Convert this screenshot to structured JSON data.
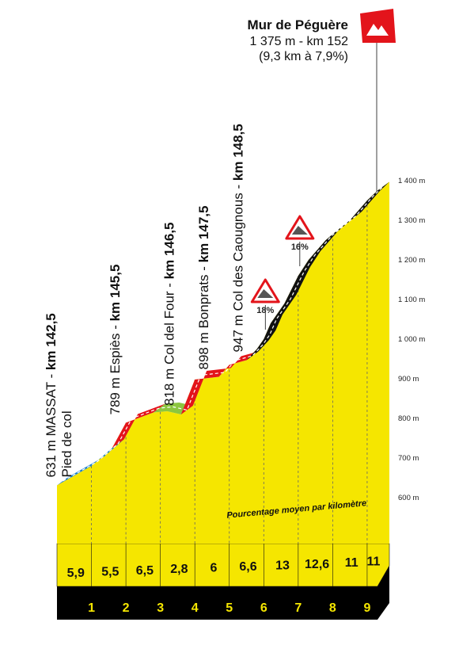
{
  "chart_data": {
    "type": "area",
    "ylim": [
      560,
      1420
    ],
    "xlim": [
      0,
      9.3
    ],
    "y_ticks": [
      {
        "value": 600,
        "label": "600 m"
      },
      {
        "value": 700,
        "label": "700 m"
      },
      {
        "value": 800,
        "label": "800 m"
      },
      {
        "value": 900,
        "label": "900 m"
      },
      {
        "value": 1000,
        "label": "1 000 m"
      },
      {
        "value": 1100,
        "label": "1 100 m"
      },
      {
        "value": 1200,
        "label": "1 200 m"
      },
      {
        "value": 1300,
        "label": "1 300 m"
      },
      {
        "value": 1400,
        "label": "1 400 m"
      }
    ],
    "profile": {
      "x": [
        0,
        1,
        1.6,
        2,
        2.8,
        3.2,
        3.6,
        4,
        4.7,
        5,
        5.5,
        5.8,
        6,
        6.2,
        6.6,
        7,
        7.3,
        7.8,
        8,
        8.5,
        9,
        9.3
      ],
      "y": [
        631,
        680,
        725,
        789,
        815,
        818,
        810,
        898,
        905,
        935,
        947,
        975,
        1000,
        1040,
        1090,
        1160,
        1200,
        1250,
        1265,
        1300,
        1350,
        1375
      ]
    },
    "segments": [
      {
        "from": 0,
        "to": 1.6,
        "color": "#1a7fc8"
      },
      {
        "from": 1.6,
        "to": 2.8,
        "color": "#e3141b"
      },
      {
        "from": 2.8,
        "to": 3.6,
        "color": "#8cc63f"
      },
      {
        "from": 3.6,
        "to": 5.5,
        "color": "#e3141b"
      },
      {
        "from": 5.5,
        "to": 9.3,
        "color": "#111111"
      }
    ],
    "km_labels": [
      "1",
      "2",
      "3",
      "4",
      "5",
      "6",
      "7",
      "8",
      "9"
    ],
    "km_percent": [
      "5,9",
      "5,5",
      "6,5",
      "2,8",
      "6",
      "6,6",
      "13",
      "12,6",
      "11",
      "11"
    ],
    "subtitle": "Pourcentage moyen par kilomètre",
    "points": [
      {
        "x": 0,
        "name": "631 m MASSAT - ",
        "km": "km 142,5",
        "extra": "Pied de col"
      },
      {
        "x": 2,
        "name": "789 m Espiès - ",
        "km": "km 145,5"
      },
      {
        "x": 3.5,
        "name": "818 m Col del Four - ",
        "km": "km 146,5"
      },
      {
        "x": 4.5,
        "name": "898 m Bonprats - ",
        "km": "km 147,5"
      },
      {
        "x": 5.5,
        "name": "947 m Col des Caougnous - ",
        "km": "km 148,5"
      }
    ],
    "grade_signs": [
      {
        "x": 6,
        "label": "18%"
      },
      {
        "x": 7,
        "label": "16%"
      }
    ],
    "summit": {
      "name": "Mur de Péguère",
      "line1": "1 375 m - km 152",
      "line2": "(9,3 km à 7,9%)"
    }
  },
  "colors": {
    "fill": "#f5e600",
    "wall_side": "#f7c400",
    "base": "#000000",
    "grade_sign": "#e3141b",
    "summit_flag": "#e3141b"
  }
}
